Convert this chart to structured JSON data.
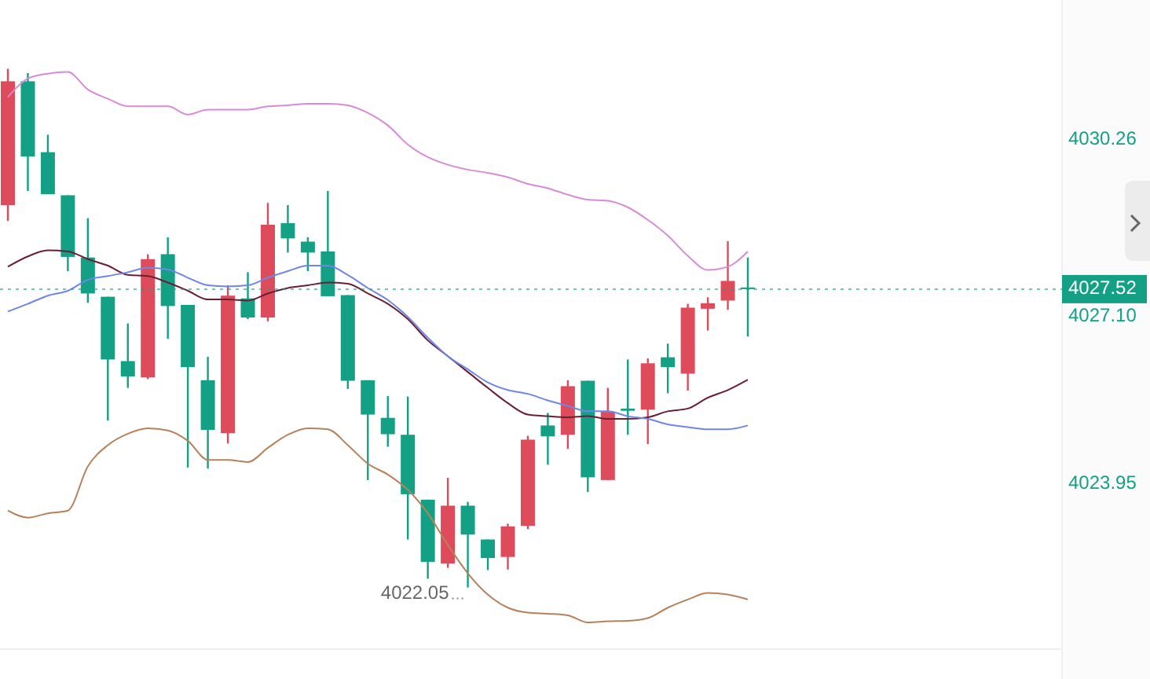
{
  "chart_data": {
    "type": "candlestick",
    "categories": [
      null,
      null,
      null,
      null,
      null,
      null,
      null,
      null,
      null,
      null,
      null,
      null,
      null,
      null,
      null,
      null,
      null,
      null,
      null,
      null,
      null,
      null,
      null,
      null,
      null,
      null,
      null,
      null,
      null,
      null,
      null,
      null,
      null,
      null,
      null,
      null,
      null,
      null
    ],
    "ohlc": [
      [
        4029.06,
        4031.56,
        4028.77,
        4031.33
      ],
      [
        4031.33,
        4031.48,
        4029.32,
        4029.95
      ],
      [
        4030.03,
        4030.35,
        4029.26,
        4029.26
      ],
      [
        4029.24,
        4029.24,
        4027.85,
        4028.11
      ],
      [
        4028.1,
        4028.82,
        4027.27,
        4027.44
      ],
      [
        4027.38,
        4027.38,
        4025.11,
        4026.23
      ],
      [
        4026.2,
        4026.89,
        4025.71,
        4025.92
      ],
      [
        4025.9,
        4028.16,
        4025.87,
        4028.07
      ],
      [
        4028.16,
        4028.47,
        4026.61,
        4027.21
      ],
      [
        4027.23,
        4027.23,
        4024.25,
        4026.09
      ],
      [
        4025.85,
        4026.28,
        4024.23,
        4024.94
      ],
      [
        4024.88,
        4027.59,
        4024.69,
        4027.4
      ],
      [
        4027.35,
        4027.83,
        4026.97,
        4027.0
      ],
      [
        4027.0,
        4029.1,
        4026.93,
        4028.7
      ],
      [
        4028.73,
        4029.06,
        4028.19,
        4028.45
      ],
      [
        4028.39,
        4028.47,
        4027.85,
        4028.19
      ],
      [
        4028.21,
        4029.32,
        4027.39,
        4027.39
      ],
      [
        4027.41,
        4027.41,
        4025.69,
        4025.84
      ],
      [
        4025.85,
        4025.85,
        4024.02,
        4025.22
      ],
      [
        4025.16,
        4025.56,
        4024.63,
        4024.86
      ],
      [
        4024.85,
        4025.55,
        4022.93,
        4023.76
      ],
      [
        4023.66,
        4023.66,
        4022.21,
        4022.52
      ],
      [
        4022.49,
        4024.06,
        4022.41,
        4023.55
      ],
      [
        4023.55,
        4023.62,
        4022.05,
        4023.02
      ],
      [
        4022.93,
        4022.93,
        4022.37,
        4022.59
      ],
      [
        4022.61,
        4023.22,
        4022.38,
        4023.17
      ],
      [
        4023.18,
        4024.83,
        4023.12,
        4024.76
      ],
      [
        4025.02,
        4025.25,
        4024.3,
        4024.82
      ],
      [
        4024.85,
        4025.85,
        4024.59,
        4025.74
      ],
      [
        4025.84,
        4025.84,
        4023.8,
        4024.07
      ],
      [
        4024.02,
        4025.71,
        4024.02,
        4025.27
      ],
      [
        4025.33,
        4026.23,
        4024.85,
        4025.29
      ],
      [
        4025.31,
        4026.25,
        4024.68,
        4026.16
      ],
      [
        4026.27,
        4026.52,
        4025.61,
        4026.09
      ],
      [
        4025.97,
        4027.25,
        4025.66,
        4027.18
      ],
      [
        4027.16,
        4027.37,
        4026.76,
        4027.26
      ],
      [
        4027.31,
        4028.4,
        4027.14,
        4027.67
      ],
      [
        4027.55,
        4028.1,
        4026.65,
        4027.52
      ]
    ],
    "colors": [
      "#de4b5b",
      "#14a085",
      "#14a085",
      "#14a085",
      "#14a085",
      "#14a085",
      "#14a085",
      "#de4b5b",
      "#14a085",
      "#14a085",
      "#14a085",
      "#de4b5b",
      "#14a085",
      "#de4b5b",
      "#14a085",
      "#14a085",
      "#14a085",
      "#14a085",
      "#14a085",
      "#14a085",
      "#14a085",
      "#14a085",
      "#de4b5b",
      "#14a085",
      "#14a085",
      "#de4b5b",
      "#de4b5b",
      "#14a085",
      "#de4b5b",
      "#14a085",
      "#de4b5b",
      "#14a085",
      "#de4b5b",
      "#14a085",
      "#de4b5b",
      "#de4b5b",
      "#de4b5b",
      "#14a085"
    ],
    "series": [
      {
        "type": "line",
        "color": "#d98ad8",
        "values": [
          4031.04,
          4031.38,
          4031.47,
          4031.5,
          4031.18,
          4031.01,
          4030.87,
          4030.87,
          4030.87,
          4030.72,
          4030.81,
          4030.81,
          4030.81,
          4030.87,
          4030.89,
          4030.92,
          4030.92,
          4030.89,
          4030.75,
          4030.52,
          4030.17,
          4029.94,
          4029.8,
          4029.71,
          4029.65,
          4029.57,
          4029.45,
          4029.37,
          4029.25,
          4029.16,
          4029.14,
          4029.02,
          4028.79,
          4028.5,
          4028.13,
          4027.87,
          4027.93,
          4028.21
        ]
      },
      {
        "type": "line",
        "color": "#6b1f35",
        "values": [
          4027.93,
          4028.12,
          4028.23,
          4028.21,
          4028.07,
          4027.95,
          4027.78,
          4027.76,
          4027.64,
          4027.49,
          4027.33,
          4027.33,
          4027.31,
          4027.44,
          4027.54,
          4027.59,
          4027.64,
          4027.62,
          4027.44,
          4027.25,
          4026.97,
          4026.58,
          4026.29,
          4026.0,
          4025.71,
          4025.43,
          4025.22,
          4025.19,
          4025.17,
          4025.19,
          4025.14,
          4025.14,
          4025.17,
          4025.28,
          4025.33,
          4025.53,
          4025.67,
          4025.86
        ]
      },
      {
        "type": "line",
        "color": "#6f86e8",
        "values": [
          4027.11,
          4027.25,
          4027.4,
          4027.49,
          4027.69,
          4027.76,
          4027.83,
          4027.91,
          4027.88,
          4027.73,
          4027.59,
          4027.57,
          4027.59,
          4027.73,
          4027.85,
          4027.95,
          4027.95,
          4027.78,
          4027.54,
          4027.32,
          4027.01,
          4026.63,
          4026.29,
          4026.05,
          4025.81,
          4025.67,
          4025.6,
          4025.48,
          4025.38,
          4025.28,
          4025.28,
          4025.19,
          4025.14,
          4025.04,
          4024.99,
          4024.95,
          4024.95,
          4025.02
        ]
      },
      {
        "type": "line",
        "color": "#b8815a",
        "values": [
          4023.46,
          4023.33,
          4023.41,
          4023.46,
          4024.27,
          4024.66,
          4024.87,
          4024.97,
          4024.93,
          4024.74,
          4024.39,
          4024.39,
          4024.35,
          4024.61,
          4024.85,
          4024.97,
          4024.95,
          4024.66,
          4024.32,
          4024.12,
          4023.84,
          4023.41,
          4022.83,
          4022.31,
          4021.92,
          4021.68,
          4021.59,
          4021.57,
          4021.54,
          4021.41,
          4021.43,
          4021.44,
          4021.49,
          4021.68,
          4021.83,
          4021.95,
          4021.92,
          4021.83
        ]
      }
    ],
    "ylim": [
      4020.92,
      4032.82
    ],
    "yticks": [
      4030.26,
      {
        "value": 4027.1,
        "label": "4027.10"
      },
      4023.95
    ],
    "tick_labels": "y",
    "ref_lines": [
      {
        "axis": "y",
        "value": 4027.52,
        "label": "4027.52",
        "color": "#14a085",
        "line_style": "dotted"
      }
    ],
    "annotations": [
      "4022.05"
    ]
  }
}
